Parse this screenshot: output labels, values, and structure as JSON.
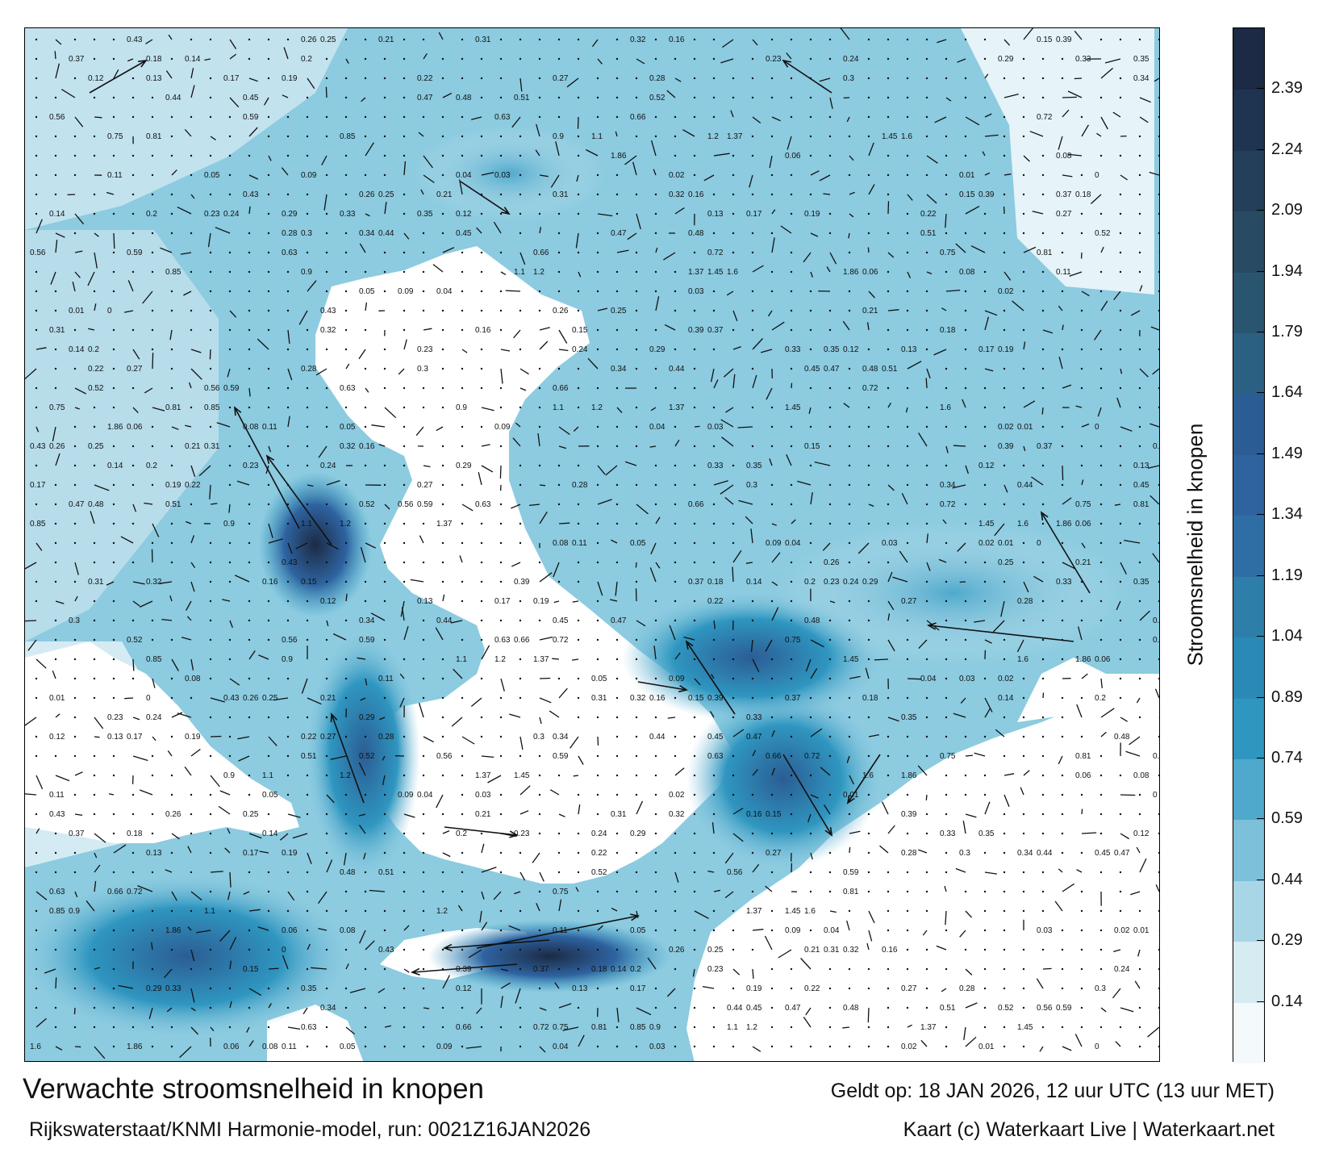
{
  "map": {
    "legend_title": "Stroomsnelheid in knopen",
    "legend_ticks": [
      "0.14",
      "0.29",
      "0.44",
      "0.59",
      "0.74",
      "0.89",
      "1.04",
      "1.19",
      "1.34",
      "1.49",
      "1.64",
      "1.79",
      "1.94",
      "2.09",
      "2.24",
      "2.39"
    ],
    "legend_colors": [
      "#f4f9fb",
      "#d6ebf2",
      "#a9d6e6",
      "#7cc0da",
      "#4ea9cc",
      "#2f96c0",
      "#2a89b6",
      "#2d7fa9",
      "#2f6ea5",
      "#2e63a0",
      "#2b5d94",
      "#2b6083",
      "#2a5571",
      "#284a62",
      "#243f5a",
      "#1f3450",
      "#1c2a45"
    ],
    "field_samples": [
      {
        "lat_idx": 0,
        "speed": 0.43
      },
      {
        "lat_idx": 1,
        "speed": 1.6
      },
      {
        "lat_idx": 2,
        "speed": 1.86
      }
    ]
  },
  "footer": {
    "title": "Verwachte stroomsnelheid in knopen",
    "valid": "Geldt op: 18 JAN 2026, 12 uur UTC (13 uur MET)",
    "source": "Rijkswaterstaat/KNMI Harmonie-model, run: 0021Z16JAN2026",
    "credit": "Kaart (c) Waterkaart Live | Waterkaart.net"
  },
  "labels": {
    "sample_values": [
      "0.43",
      "0.26",
      "0.25",
      "0.21",
      "0.31",
      "0.32",
      "0.16",
      "0.15",
      "0.39",
      "0.37",
      "0.18",
      "0.14",
      "0.2",
      "0.23",
      "0.24",
      "0.29",
      "0.33",
      "0.35",
      "0.12",
      "0.13",
      "0.17",
      "0.19",
      "0.22",
      "0.27",
      "0.28",
      "0.3",
      "0.34",
      "0.44",
      "0.45",
      "0.47",
      "0.48",
      "0.51",
      "0.52",
      "0.56",
      "0.59",
      "0.63",
      "0.66",
      "0.72",
      "0.75",
      "0.81",
      "0.85",
      "0.9",
      "1.1",
      "1.2",
      "1.37",
      "1.45",
      "1.6",
      "1.86",
      "0.06",
      "0.08",
      "0.11",
      "0.05",
      "0.09",
      "0.04",
      "0.03",
      "0.02",
      "0.01",
      "0"
    ]
  }
}
